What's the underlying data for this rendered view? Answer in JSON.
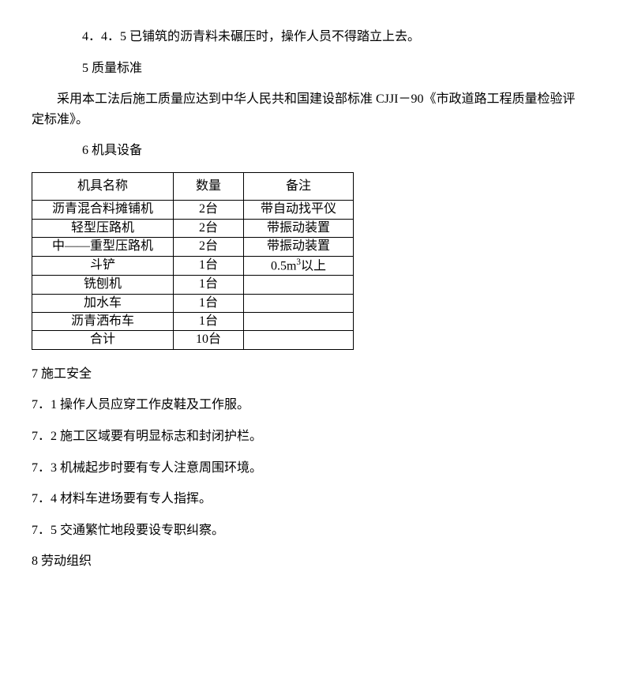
{
  "paragraphs": {
    "p1": "4．4．5 已铺筑的沥青料未碾压时，操作人员不得踏立上去。",
    "p2": "5 质量标准",
    "p3": "采用本工法后施工质量应达到中华人民共和国建设部标准 CJJI－90《市政道路工程质量检验评定标准》。",
    "p4": "6 机具设备",
    "p5": "7 施工安全",
    "p6": "7．1 操作人员应穿工作皮鞋及工作服。",
    "p7": "7．2 施工区域要有明显标志和封闭护栏。",
    "p8": "7．3 机械起步时要有专人注意周围环境。",
    "p9": "7．4 材料车进场要有专人指挥。",
    "p10": "7．5 交通繁忙地段要设专职纠察。",
    "p11": "8 劳动组织"
  },
  "table": {
    "headers": {
      "name": "机具名称",
      "qty": "数量",
      "note": "备注"
    },
    "rows": [
      {
        "name": "沥青混合料摊铺机",
        "qty": "2台",
        "note": "带自动找平仪"
      },
      {
        "name": "轻型压路机",
        "qty": "2台",
        "note": "带振动装置"
      },
      {
        "name": "中——重型压路机",
        "qty": "2台",
        "note": "带振动装置"
      },
      {
        "name": "斗铲",
        "qty": "1台",
        "note_html": "0.5m<sup>3</sup>以上"
      },
      {
        "name": "铣刨机",
        "qty": "1台",
        "note": ""
      },
      {
        "name": "加水车",
        "qty": "1台",
        "note": ""
      },
      {
        "name": "沥青洒布车",
        "qty": "1台",
        "note": ""
      },
      {
        "name": "合计",
        "qty": "10台",
        "note": ""
      }
    ],
    "col_widths": {
      "name": 170,
      "qty": 80,
      "note": 130
    }
  }
}
